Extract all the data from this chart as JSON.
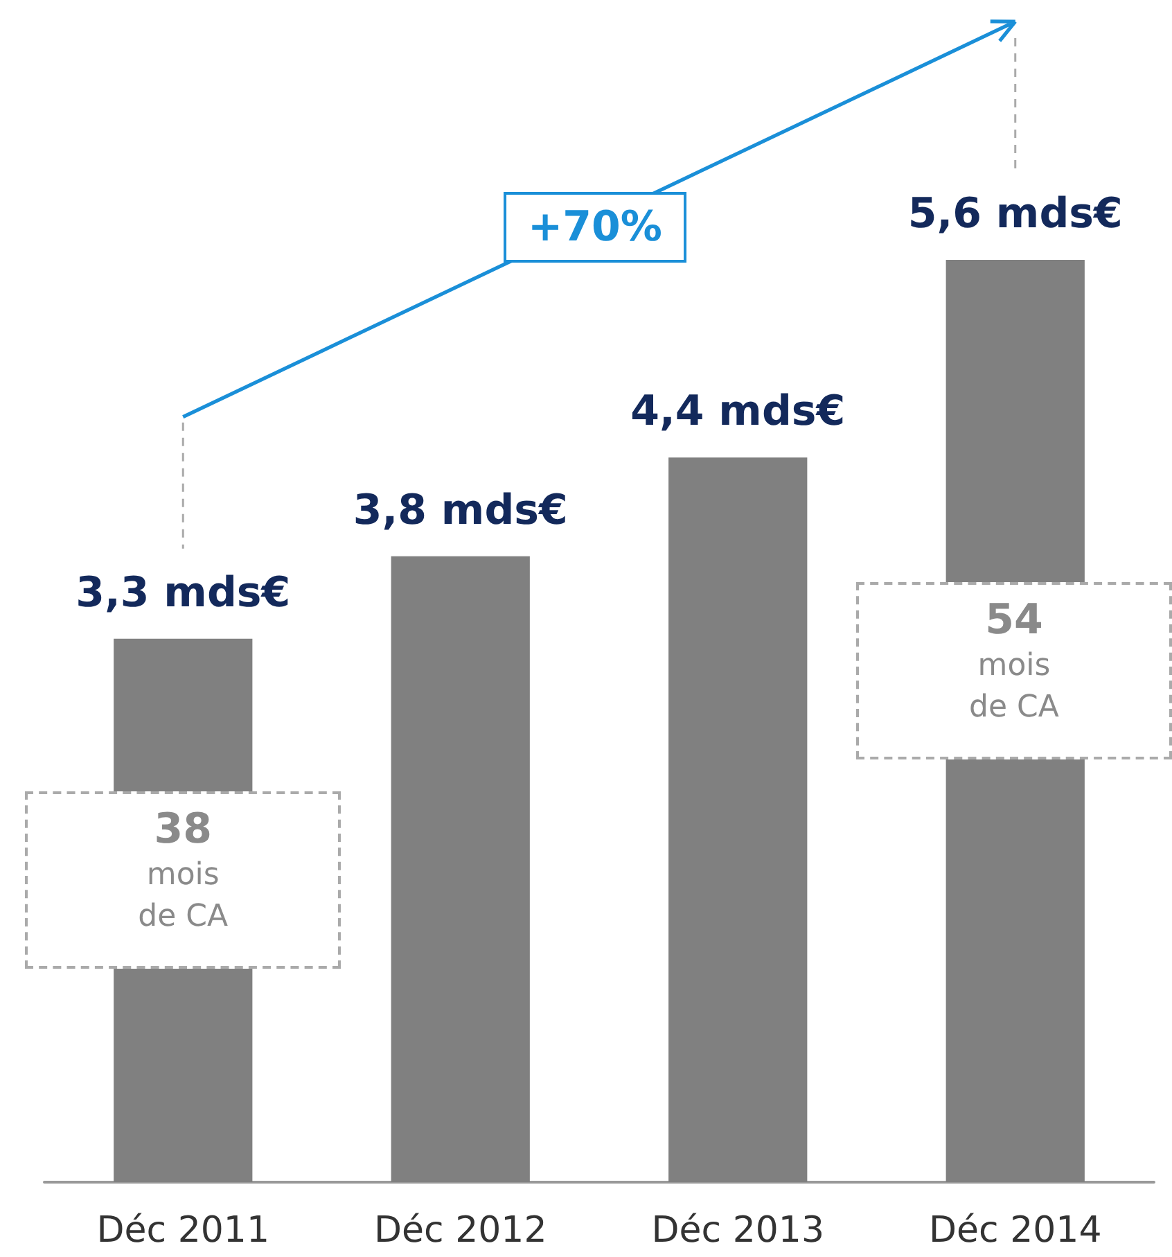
{
  "chart_data": {
    "type": "bar",
    "categories": [
      "Déc 2011",
      "Déc 2012",
      "Déc 2013",
      "Déc 2014"
    ],
    "values": [
      3.3,
      3.8,
      4.4,
      5.6
    ],
    "value_labels": [
      "3,3 mds€",
      "3,8 mds€",
      "4,4 mds€",
      "5,6 mds€"
    ],
    "color": "#808080",
    "annotations": [
      "+70%",
      "38 mois de CA",
      "54 mois de CA"
    ]
  }
}
